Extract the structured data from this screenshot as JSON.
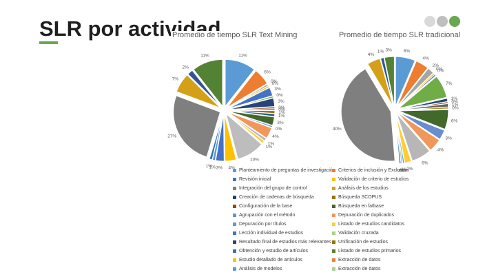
{
  "slide": {
    "title": "SLR por actividad",
    "accent": "#6aa84f"
  },
  "nav_dots": [
    "#d9d9d9",
    "#bfbfbf",
    "#6aa84f"
  ],
  "chart_data": [
    {
      "type": "pie",
      "title": "Promedio de tiempo SLR Text Mining",
      "slices": [
        {
          "label": "11%",
          "value": 11,
          "color": "#5b9bd5"
        },
        {
          "label": "6%",
          "value": 6,
          "color": "#ed7d31"
        },
        {
          "label": "0%",
          "value": 0.6,
          "color": "#a5a5a5"
        },
        {
          "label": "0%",
          "value": 0.6,
          "color": "#ffc000"
        },
        {
          "label": "3%",
          "value": 3,
          "color": "#4472c4"
        },
        {
          "label": "0%",
          "value": 0.6,
          "color": "#70ad47"
        },
        {
          "label": "3%",
          "value": 3,
          "color": "#264478"
        },
        {
          "label": "0%",
          "value": 0.6,
          "color": "#9e480e"
        },
        {
          "label": "0%",
          "value": 0.6,
          "color": "#636363"
        },
        {
          "label": "1%",
          "value": 1,
          "color": "#997300"
        },
        {
          "label": "1%",
          "value": 1,
          "color": "#255e91"
        },
        {
          "label": "3%",
          "value": 3,
          "color": "#43682b"
        },
        {
          "label": "0%",
          "value": 0.6,
          "color": "#698ed0"
        },
        {
          "label": "4%",
          "value": 4,
          "color": "#f1975a"
        },
        {
          "label": "1%",
          "value": 1,
          "color": "#b7b7b7"
        },
        {
          "label": "1%",
          "value": 1,
          "color": "#ffcd33"
        },
        {
          "label": "10%",
          "value": 10,
          "color": "#bdbdbd"
        },
        {
          "label": "4%",
          "value": 4,
          "color": "#ffc000"
        },
        {
          "label": "3%",
          "value": 3,
          "color": "#4472c4"
        },
        {
          "label": "1%",
          "value": 1,
          "color": "#5b9bd5"
        },
        {
          "label": "1%",
          "value": 1,
          "color": "#2e75b6"
        },
        {
          "label": "27%",
          "value": 27,
          "color": "#7f7f7f"
        },
        {
          "label": "7%",
          "value": 7,
          "color": "#d4a017"
        },
        {
          "label": "2%",
          "value": 2,
          "color": "#2f5597"
        },
        {
          "label": "11%",
          "value": 11,
          "color": "#548235"
        }
      ]
    },
    {
      "type": "pie",
      "title": "Promedio de tiempo SLR tradicional",
      "slices": [
        {
          "label": "6%",
          "value": 6,
          "color": "#5b9bd5"
        },
        {
          "label": "4%",
          "value": 4,
          "color": "#ed7d31"
        },
        {
          "label": "2%",
          "value": 2,
          "color": "#a5a5a5"
        },
        {
          "label": "0%",
          "value": 0.5,
          "color": "#ffc000"
        },
        {
          "label": "0%",
          "value": 0.5,
          "color": "#4472c4"
        },
        {
          "label": "7%",
          "value": 7,
          "color": "#70ad47"
        },
        {
          "label": "1%",
          "value": 1,
          "color": "#264478"
        },
        {
          "label": "0%",
          "value": 0.5,
          "color": "#9e480e"
        },
        {
          "label": "1%",
          "value": 1,
          "color": "#636363"
        },
        {
          "label": "0%",
          "value": 0.5,
          "color": "#997300"
        },
        {
          "label": "6%",
          "value": 6,
          "color": "#43682b"
        },
        {
          "label": "3%",
          "value": 3,
          "color": "#698ed0"
        },
        {
          "label": "4%",
          "value": 4,
          "color": "#f1975a"
        },
        {
          "label": "6%",
          "value": 6,
          "color": "#b7b7b7"
        },
        {
          "label": "2%",
          "value": 2,
          "color": "#ffcd33"
        },
        {
          "label": "0%",
          "value": 0.5,
          "color": "#5b9bd5"
        },
        {
          "label": "0%",
          "value": 0.5,
          "color": "#a9d18e"
        },
        {
          "label": "0%",
          "value": 0.5,
          "color": "#2e75b6"
        },
        {
          "label": "40%",
          "value": 40,
          "color": "#7f7f7f"
        },
        {
          "label": "4%",
          "value": 4,
          "color": "#d4a017"
        },
        {
          "label": "1%",
          "value": 1,
          "color": "#2f5597"
        },
        {
          "label": "3%",
          "value": 3,
          "color": "#548235"
        }
      ]
    }
  ],
  "legend": [
    {
      "label": "Planteamiento de preguntas de investigación",
      "color": "#5b9bd5"
    },
    {
      "label": "Criterios de inclusión y Exclusión",
      "color": "#ed7d31"
    },
    {
      "label": "Revisión inicial",
      "color": "#4472c4"
    },
    {
      "label": "Validación de criterio de estudios",
      "color": "#ffc000"
    },
    {
      "label": "Integración del grupo de control",
      "color": "#7f7f7f"
    },
    {
      "label": "Análisis de los estudios",
      "color": "#d4a017"
    },
    {
      "label": "Creación de cadenas de búsqueda",
      "color": "#264478"
    },
    {
      "label": "Búsqueda SCOPUS",
      "color": "#997300"
    },
    {
      "label": "Configuración de la base",
      "color": "#9e480e"
    },
    {
      "label": "Búsqueda en fatbase",
      "color": "#43682b"
    },
    {
      "label": "Agrupación con el método",
      "color": "#698ed0"
    },
    {
      "label": "Depuración de duplicados",
      "color": "#f1975a"
    },
    {
      "label": "Depuración por títulos",
      "color": "#5b9bd5"
    },
    {
      "label": "Listado de estudios candidatos",
      "color": "#ffcd33"
    },
    {
      "label": "Lección individual de estudios",
      "color": "#4472c4"
    },
    {
      "label": "Validación cruzada",
      "color": "#a9d18e"
    },
    {
      "label": "Resultado final de estudios más relevantes",
      "color": "#264478"
    },
    {
      "label": "Unificación de estudios",
      "color": "#997300"
    },
    {
      "label": "Obtención y estudio de artículos",
      "color": "#2e75b6"
    },
    {
      "label": "Listado de estudios primarios",
      "color": "#548235"
    },
    {
      "label": "Estudio detallado de artículos",
      "color": "#ffc000"
    },
    {
      "label": "Extracción de datos",
      "color": "#ed7d31"
    },
    {
      "label": "Análisis de modelos",
      "color": "#5b9bd5"
    },
    {
      "label": "Extracción de datos",
      "color": "#a9d18e"
    }
  ]
}
